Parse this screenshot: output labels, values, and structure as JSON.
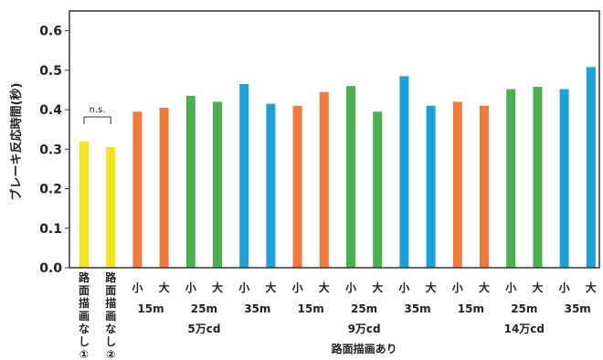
{
  "chart_data": {
    "type": "bar",
    "ylabel": "ブレーキ反応時間(秒)",
    "ylim": [
      0,
      0.65
    ],
    "yticks": [
      "0.0",
      "0.1",
      "0.2",
      "0.3",
      "0.4",
      "0.5",
      "0.6"
    ],
    "grid": false,
    "colors": {
      "yellow": "#f2e51f",
      "orange": "#f07a3c",
      "green": "#4caf50",
      "blue": "#1ea0d8"
    },
    "bars": [
      {
        "label": "路面描画なし①",
        "value": 0.32,
        "color": "yellow"
      },
      {
        "label": "路面描画なし②",
        "value": 0.305,
        "color": "yellow"
      },
      {
        "label": "小",
        "value": 0.395,
        "color": "orange"
      },
      {
        "label": "大",
        "value": 0.405,
        "color": "orange"
      },
      {
        "label": "小",
        "value": 0.435,
        "color": "green"
      },
      {
        "label": "大",
        "value": 0.42,
        "color": "green"
      },
      {
        "label": "小",
        "value": 0.465,
        "color": "blue"
      },
      {
        "label": "大",
        "value": 0.415,
        "color": "blue"
      },
      {
        "label": "小",
        "value": 0.41,
        "color": "orange"
      },
      {
        "label": "大",
        "value": 0.445,
        "color": "orange"
      },
      {
        "label": "小",
        "value": 0.46,
        "color": "green"
      },
      {
        "label": "大",
        "value": 0.395,
        "color": "green"
      },
      {
        "label": "小",
        "value": 0.485,
        "color": "blue"
      },
      {
        "label": "大",
        "value": 0.41,
        "color": "blue"
      },
      {
        "label": "小",
        "value": 0.42,
        "color": "orange"
      },
      {
        "label": "大",
        "value": 0.41,
        "color": "orange"
      },
      {
        "label": "小",
        "value": 0.452,
        "color": "green"
      },
      {
        "label": "大",
        "value": 0.458,
        "color": "green"
      },
      {
        "label": "小",
        "value": 0.452,
        "color": "blue"
      },
      {
        "label": "大",
        "value": 0.508,
        "color": "blue"
      }
    ],
    "distance_labels": [
      "15m",
      "25m",
      "35m",
      "15m",
      "25m",
      "35m",
      "15m",
      "25m",
      "35m"
    ],
    "candela_labels": [
      "5万cd",
      "9万cd",
      "14万cd"
    ],
    "group_label": "路面描画あり",
    "annotation": "n.s."
  }
}
